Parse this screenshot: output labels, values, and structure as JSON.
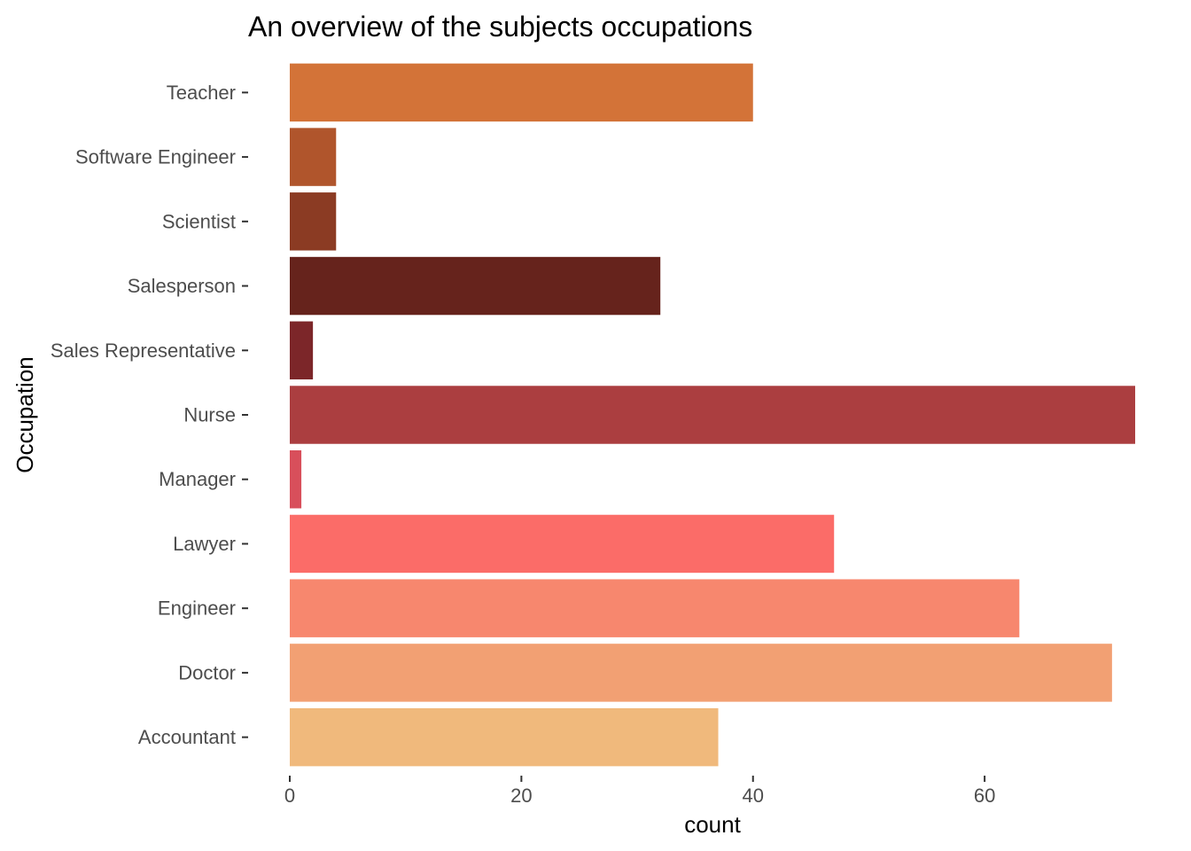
{
  "chart_data": {
    "type": "bar",
    "orientation": "horizontal",
    "title": "An overview of the subjects occupations",
    "xlabel": "count",
    "ylabel": "Occupation",
    "categories": [
      "Accountant",
      "Doctor",
      "Engineer",
      "Lawyer",
      "Manager",
      "Nurse",
      "Sales Representative",
      "Salesperson",
      "Scientist",
      "Software Engineer",
      "Teacher"
    ],
    "values": [
      37,
      71,
      63,
      47,
      1,
      73,
      2,
      32,
      4,
      4,
      40
    ],
    "colors": [
      "#f0b97c",
      "#f2a073",
      "#f7876e",
      "#fb6c68",
      "#d84f5b",
      "#ab3e40",
      "#7c2629",
      "#66231c",
      "#8b3b23",
      "#b0552c",
      "#d37338"
    ],
    "xlim": [
      0,
      73
    ],
    "xticks": [
      0,
      20,
      40,
      60
    ],
    "grid": false,
    "legend": "none"
  }
}
